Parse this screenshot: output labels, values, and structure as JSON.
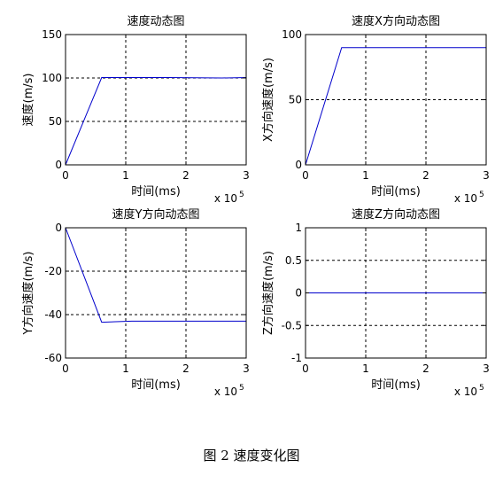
{
  "figure": {
    "caption": "图 2  速度变化图"
  },
  "chart_data": [
    {
      "type": "line",
      "title": "速度动态图",
      "xlabel": "时间(ms)",
      "ylabel": "速度(m/s)",
      "x_exponent": "x 10",
      "x_exponent_power": "5",
      "xlim": [
        0,
        3
      ],
      "ylim": [
        0,
        150
      ],
      "xticks": [
        0,
        1,
        2,
        3
      ],
      "xtick_labels": [
        "0",
        "1",
        "2",
        "3"
      ],
      "yticks": [
        0,
        50,
        100,
        150
      ],
      "ytick_labels": [
        "0",
        "50",
        "100",
        "150"
      ],
      "grid": true,
      "line_color": "#0000cc",
      "series": [
        {
          "x": [
            0,
            0.6,
            1.7,
            2.6,
            3.0
          ],
          "y": [
            0,
            100.5,
            100.5,
            100,
            100.5
          ]
        }
      ]
    },
    {
      "type": "line",
      "title": "速度X方向动态图",
      "xlabel": "时间(ms)",
      "ylabel": "X方向速度(m/s)",
      "x_exponent": "x 10",
      "x_exponent_power": "5",
      "xlim": [
        0,
        3
      ],
      "ylim": [
        0,
        100
      ],
      "xticks": [
        0,
        1,
        2,
        3
      ],
      "xtick_labels": [
        "0",
        "1",
        "2",
        "3"
      ],
      "yticks": [
        0,
        50,
        100
      ],
      "ytick_labels": [
        "0",
        "50",
        "100"
      ],
      "grid": true,
      "line_color": "#0000cc",
      "series": [
        {
          "x": [
            0,
            0.6,
            3.0
          ],
          "y": [
            0,
            90,
            90
          ]
        }
      ]
    },
    {
      "type": "line",
      "title": "速度Y方向动态图",
      "xlabel": "时间(ms)",
      "ylabel": "Y方向速度(m/s)",
      "x_exponent": "x 10",
      "x_exponent_power": "5",
      "xlim": [
        0,
        3
      ],
      "ylim": [
        -60,
        0
      ],
      "xticks": [
        0,
        1,
        2,
        3
      ],
      "xtick_labels": [
        "0",
        "1",
        "2",
        "3"
      ],
      "yticks": [
        -60,
        -40,
        -20,
        0
      ],
      "ytick_labels": [
        "-60",
        "-40",
        "-20",
        "0"
      ],
      "grid": true,
      "line_color": "#0000cc",
      "series": [
        {
          "x": [
            0,
            0.6,
            1.1,
            3.0
          ],
          "y": [
            0,
            -43.5,
            -43,
            -43
          ]
        }
      ]
    },
    {
      "type": "line",
      "title": "速度Z方向动态图",
      "xlabel": "时间(ms)",
      "ylabel": "Z方向速度(m/s)",
      "x_exponent": "x 10",
      "x_exponent_power": "5",
      "xlim": [
        0,
        3
      ],
      "ylim": [
        -1,
        1
      ],
      "xticks": [
        0,
        1,
        2,
        3
      ],
      "xtick_labels": [
        "0",
        "1",
        "2",
        "3"
      ],
      "yticks": [
        -1,
        -0.5,
        0,
        0.5,
        1
      ],
      "ytick_labels": [
        "-1",
        "-0.5",
        "0",
        "0.5",
        "1"
      ],
      "grid": true,
      "line_color": "#0000cc",
      "series": [
        {
          "x": [
            0,
            3.0
          ],
          "y": [
            0,
            0
          ]
        }
      ]
    }
  ]
}
